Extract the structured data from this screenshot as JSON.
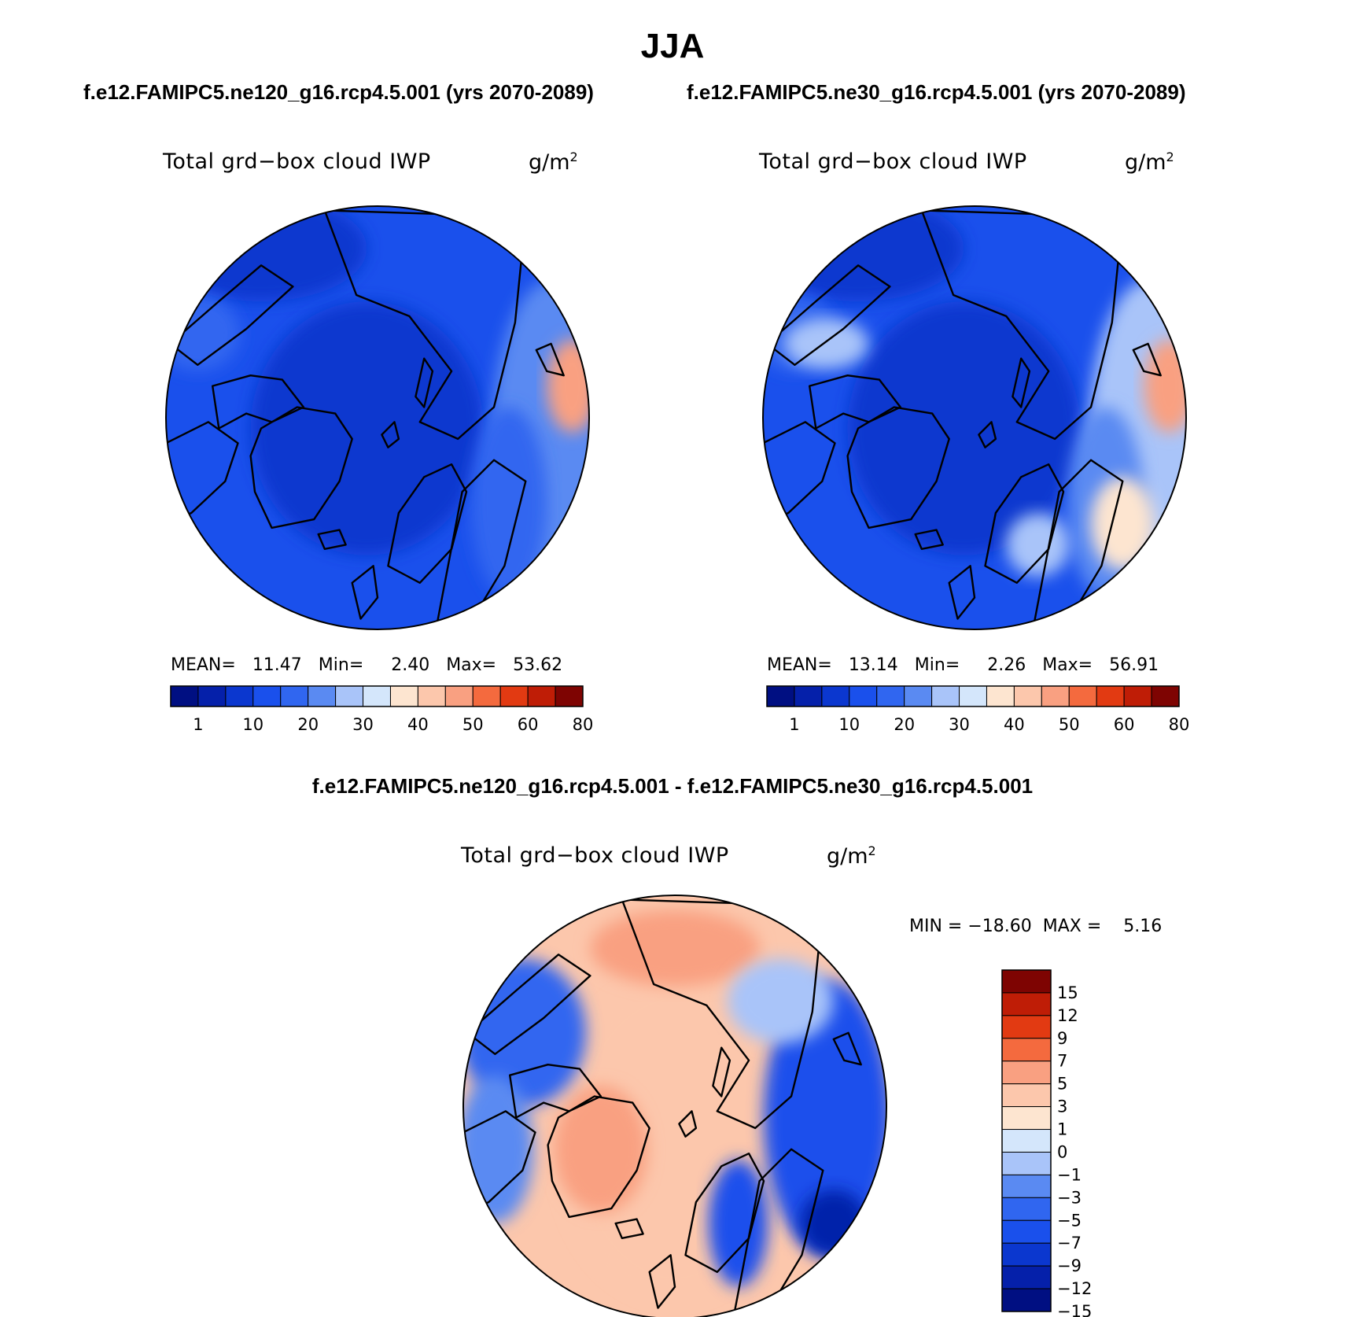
{
  "figure": {
    "title": "JJA",
    "subtitle_left": "f.e12.FAMIPC5.ne120_g16.rcp4.5.001 (yrs 2070-2089)",
    "subtitle_right": "f.e12.FAMIPC5.ne30_g16.rcp4.5.001 (yrs 2070-2089)",
    "diff_title": "f.e12.FAMIPC5.ne120_g16.rcp4.5.001 - f.e12.FAMIPC5.ne30_g16.rcp4.5.001"
  },
  "colors": {
    "seq": [
      "#000f82",
      "#0520aa",
      "#0b37cf",
      "#1a50ec",
      "#3066f0",
      "#5a8af2",
      "#a9c4f9",
      "#d4e6fb",
      "#fde5d0",
      "#fcc7ac",
      "#f9a081",
      "#f46a3e",
      "#e23a12",
      "#bf1d06",
      "#7e0402"
    ],
    "diff": [
      "#000f82",
      "#0520aa",
      "#0b37cf",
      "#1a50ec",
      "#3066f0",
      "#5a8af2",
      "#a9c4f9",
      "#d4e6fb",
      "#fde5d0",
      "#fcc7ac",
      "#f9a081",
      "#f46a3e",
      "#e23a12",
      "#bf1d06",
      "#7e0402"
    ],
    "land": "#000000"
  },
  "chart_data": [
    {
      "type": "heatmap",
      "id": "panel_ne120",
      "title": "Total grd−box cloud IWP",
      "units": "g/m",
      "units_sup": "2",
      "projection": "north-polar-stereographic",
      "stats": {
        "mean_label": "MEAN=",
        "mean": "11.47",
        "min_label": "Min=",
        "min": "2.40",
        "max_label": "Max=",
        "max": "53.62"
      },
      "colorbar": {
        "orientation": "horizontal",
        "levels": [
          "1",
          "10",
          "20",
          "30",
          "40",
          "50",
          "60",
          "80"
        ]
      },
      "features": {
        "background_level": 3,
        "arctic_level": 2,
        "atlantic_level": 5,
        "hotspot_level": 10
      }
    },
    {
      "type": "heatmap",
      "id": "panel_ne30",
      "title": "Total grd−box cloud IWP",
      "units": "g/m",
      "units_sup": "2",
      "projection": "north-polar-stereographic",
      "stats": {
        "mean_label": "MEAN=",
        "mean": "13.14",
        "min_label": "Min=",
        "min": "2.26",
        "max_label": "Max=",
        "max": "56.91"
      },
      "colorbar": {
        "orientation": "horizontal",
        "levels": [
          "1",
          "10",
          "20",
          "30",
          "40",
          "50",
          "60",
          "80"
        ]
      },
      "features": {
        "background_level": 3,
        "arctic_level": 2,
        "atlantic_level": 6,
        "hotspot_level": 10
      }
    },
    {
      "type": "heatmap",
      "id": "panel_diff",
      "title": "Total grd−box cloud IWP",
      "units": "g/m",
      "units_sup": "2",
      "projection": "north-polar-stereographic",
      "stats": {
        "label": "MIN = −18.60  MAX =    5.16",
        "min": "−18.60",
        "max": "5.16"
      },
      "colorbar": {
        "orientation": "vertical",
        "levels": [
          "15",
          "12",
          "9",
          "7",
          "5",
          "3",
          "1",
          "0",
          "−1",
          "−3",
          "−5",
          "−7",
          "−9",
          "−12",
          "−15"
        ]
      },
      "features": {
        "arctic_level": 9,
        "atlantic_level": 3,
        "pacific_level": 4
      }
    }
  ]
}
